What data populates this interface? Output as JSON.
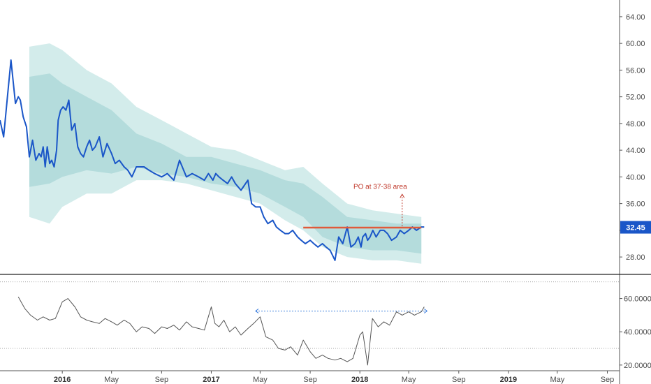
{
  "colors": {
    "price_line": "#1a56c8",
    "band_outer": "#d3eceb",
    "band_inner": "#b4dcdc",
    "target_line": "#e05a3a",
    "annotation": "#c0392b",
    "oscillator_line": "#555555",
    "oscillator_guide": "#3b7ddd",
    "axis_text": "#4a4a4a",
    "badge_bg": "#1a56c8",
    "panel_divider": "#222222"
  },
  "chart_data": [
    {
      "type": "line",
      "panel": "price",
      "ylim": [
        25.5,
        66.5
      ],
      "yticks": [
        28,
        32,
        36,
        40,
        44,
        48,
        52,
        56,
        60,
        64
      ],
      "ytick_labels": [
        "28.00",
        "32.00",
        "36.00",
        "40.00",
        "44.00",
        "48.00",
        "52.00",
        "56.00",
        "60.00",
        "64.00"
      ],
      "xlim": [
        "2015-08-01",
        "2019-10-01"
      ],
      "last_value_label": "32.45",
      "annotation_text": "PO at 37-38 area",
      "horizontal_level": {
        "value": 32.4,
        "x_start": "2017-08-15",
        "x_end": "2018-06-01"
      },
      "annotation_arrow": {
        "x": "2018-04-15",
        "y_from": 32.6,
        "y_to": 37.4
      },
      "annotation_pos": {
        "x": "2018-02-20",
        "y": 38.2
      },
      "series": [
        {
          "kind": "line",
          "x": [
            "2015-08-01",
            "2015-08-10",
            "2015-08-20",
            "2015-08-28",
            "2015-09-08",
            "2015-09-15",
            "2015-09-20",
            "2015-09-27",
            "2015-10-05",
            "2015-10-12",
            "2015-10-20",
            "2015-10-28",
            "2015-11-05",
            "2015-11-10",
            "2015-11-15",
            "2015-11-20",
            "2015-11-25",
            "2015-12-01",
            "2015-12-06",
            "2015-12-12",
            "2015-12-18",
            "2015-12-22",
            "2015-12-28",
            "2016-01-03",
            "2016-01-10",
            "2016-01-17",
            "2016-01-24",
            "2016-02-01",
            "2016-02-08",
            "2016-02-15",
            "2016-02-22",
            "2016-03-01",
            "2016-03-08",
            "2016-03-15",
            "2016-03-22",
            "2016-04-01",
            "2016-04-10",
            "2016-04-20",
            "2016-05-01",
            "2016-05-10",
            "2016-05-20",
            "2016-06-01",
            "2016-06-10",
            "2016-06-20",
            "2016-07-01",
            "2016-07-10",
            "2016-07-20",
            "2016-08-01",
            "2016-08-15",
            "2016-09-01",
            "2016-09-15",
            "2016-10-01",
            "2016-10-15",
            "2016-11-01",
            "2016-11-15",
            "2016-12-01",
            "2016-12-15",
            "2016-12-25",
            "2017-01-05",
            "2017-01-12",
            "2017-01-20",
            "2017-01-30",
            "2017-02-10",
            "2017-02-20",
            "2017-03-01",
            "2017-03-15",
            "2017-04-01",
            "2017-04-10",
            "2017-04-20",
            "2017-05-01",
            "2017-05-10",
            "2017-05-20",
            "2017-06-01",
            "2017-06-10",
            "2017-06-20",
            "2017-07-01",
            "2017-07-10",
            "2017-07-20",
            "2017-08-01",
            "2017-08-10",
            "2017-08-20",
            "2017-09-01",
            "2017-09-10",
            "2017-09-20",
            "2017-10-01",
            "2017-10-10",
            "2017-10-20",
            "2017-11-01",
            "2017-11-10",
            "2017-11-20",
            "2017-12-01",
            "2017-12-10",
            "2017-12-20",
            "2017-12-28",
            "2018-01-04",
            "2018-01-08",
            "2018-01-15",
            "2018-01-20",
            "2018-01-26",
            "2018-02-02",
            "2018-02-10",
            "2018-02-20",
            "2018-03-01",
            "2018-03-10",
            "2018-03-20",
            "2018-04-01",
            "2018-04-10",
            "2018-04-20",
            "2018-05-01",
            "2018-05-10",
            "2018-05-20",
            "2018-06-01",
            "2018-06-08"
          ],
          "y": [
            48.5,
            46.0,
            52.5,
            57.5,
            51.0,
            52.0,
            51.5,
            49.0,
            47.5,
            43.0,
            45.5,
            42.5,
            43.5,
            43.0,
            44.5,
            41.5,
            44.5,
            42.0,
            42.5,
            41.5,
            44.0,
            48.5,
            50.0,
            50.5,
            50.0,
            51.5,
            47.0,
            48.0,
            44.5,
            43.5,
            43.0,
            44.5,
            45.5,
            44.0,
            44.5,
            46.0,
            43.0,
            45.0,
            43.5,
            42.0,
            42.5,
            41.5,
            41.0,
            40.0,
            41.5,
            41.5,
            41.5,
            41.0,
            40.5,
            40.0,
            40.5,
            39.5,
            42.5,
            40.0,
            40.5,
            40.0,
            39.5,
            40.5,
            39.5,
            40.5,
            40.0,
            39.5,
            39.0,
            40.0,
            39.0,
            38.0,
            39.5,
            36.0,
            35.5,
            35.5,
            34.0,
            33.0,
            33.5,
            32.5,
            32.0,
            31.5,
            31.5,
            32.0,
            31.0,
            30.5,
            30.0,
            30.5,
            30.0,
            29.5,
            30.0,
            29.5,
            29.0,
            27.5,
            31.0,
            30.0,
            32.5,
            29.5,
            30.0,
            31.0,
            29.5,
            31.0,
            31.5,
            30.5,
            31.0,
            32.0,
            31.0,
            32.0,
            32.0,
            31.5,
            30.5,
            31.0,
            32.0,
            31.5,
            32.0,
            32.5,
            32.0,
            32.5,
            32.5
          ]
        },
        {
          "kind": "band_outer",
          "x": [
            "2015-10-12",
            "2015-12-01",
            "2016-01-01",
            "2016-03-01",
            "2016-05-01",
            "2016-07-01",
            "2016-09-01",
            "2016-11-01",
            "2017-01-01",
            "2017-03-01",
            "2017-05-01",
            "2017-07-01",
            "2017-08-15",
            "2017-10-01",
            "2017-12-01",
            "2018-02-01",
            "2018-04-01",
            "2018-06-01"
          ],
          "upper": [
            59.5,
            60.0,
            59.0,
            56.0,
            54.0,
            50.5,
            48.5,
            46.5,
            44.5,
            44.0,
            42.5,
            41.0,
            41.5,
            39.0,
            36.0,
            35.0,
            34.5,
            34.0
          ],
          "lower": [
            34.0,
            33.0,
            35.5,
            37.5,
            37.5,
            39.5,
            39.5,
            39.0,
            38.0,
            37.0,
            36.0,
            33.5,
            32.0,
            29.5,
            28.0,
            27.5,
            27.5,
            27.0
          ]
        },
        {
          "kind": "band_inner",
          "x": [
            "2015-10-12",
            "2015-12-01",
            "2016-01-01",
            "2016-03-01",
            "2016-05-01",
            "2016-07-01",
            "2016-09-01",
            "2016-11-01",
            "2017-01-01",
            "2017-03-01",
            "2017-05-01",
            "2017-07-01",
            "2017-08-15",
            "2017-10-01",
            "2017-12-01",
            "2018-02-01",
            "2018-04-01",
            "2018-06-01"
          ],
          "upper": [
            55.0,
            55.5,
            54.0,
            52.0,
            50.0,
            46.5,
            45.0,
            43.0,
            43.0,
            42.0,
            41.0,
            39.5,
            39.0,
            37.0,
            34.0,
            33.5,
            33.0,
            33.0
          ],
          "lower": [
            38.5,
            39.0,
            40.0,
            41.0,
            40.5,
            41.5,
            40.5,
            40.0,
            39.0,
            38.5,
            37.5,
            35.5,
            34.0,
            31.0,
            29.5,
            29.0,
            29.0,
            28.5
          ]
        }
      ],
      "x_tick_labels": [
        "2016",
        "May",
        "Sep",
        "2017",
        "May",
        "Sep",
        "2018",
        "May",
        "Sep",
        "2019",
        "May",
        "Sep"
      ],
      "x_ticks": [
        "2016-01-01",
        "2016-05-01",
        "2016-09-01",
        "2017-01-01",
        "2017-05-01",
        "2017-09-01",
        "2018-01-01",
        "2018-05-01",
        "2018-09-01",
        "2019-01-01",
        "2019-05-01",
        "2019-09-01"
      ]
    },
    {
      "type": "line",
      "panel": "oscillator",
      "ylim": [
        17,
        72
      ],
      "yticks": [
        20,
        40,
        60
      ],
      "ytick_labels": [
        "20.0000",
        "40.0000",
        "60.0000"
      ],
      "reference_lines": [
        70,
        30
      ],
      "guide_line": {
        "value": 52.5,
        "x_start": "2017-04-20",
        "x_end": "2018-06-15"
      },
      "series": [
        {
          "kind": "line",
          "x": [
            "2015-09-15",
            "2015-10-01",
            "2015-10-15",
            "2015-11-01",
            "2015-11-15",
            "2015-12-01",
            "2015-12-15",
            "2016-01-01",
            "2016-01-15",
            "2016-02-01",
            "2016-02-15",
            "2016-03-01",
            "2016-03-15",
            "2016-04-01",
            "2016-04-15",
            "2016-05-01",
            "2016-05-15",
            "2016-06-01",
            "2016-06-15",
            "2016-07-01",
            "2016-07-15",
            "2016-08-01",
            "2016-08-15",
            "2016-09-01",
            "2016-09-15",
            "2016-10-01",
            "2016-10-15",
            "2016-11-01",
            "2016-11-15",
            "2016-12-01",
            "2016-12-15",
            "2017-01-01",
            "2017-01-10",
            "2017-01-20",
            "2017-02-01",
            "2017-02-15",
            "2017-03-01",
            "2017-03-15",
            "2017-04-01",
            "2017-04-15",
            "2017-05-01",
            "2017-05-15",
            "2017-06-01",
            "2017-06-15",
            "2017-07-01",
            "2017-07-15",
            "2017-08-01",
            "2017-08-15",
            "2017-09-01",
            "2017-09-15",
            "2017-10-01",
            "2017-10-15",
            "2017-11-01",
            "2017-11-15",
            "2017-12-01",
            "2017-12-15",
            "2018-01-01",
            "2018-01-08",
            "2018-01-20",
            "2018-02-01",
            "2018-02-15",
            "2018-03-01",
            "2018-03-15",
            "2018-04-01",
            "2018-04-15",
            "2018-05-01",
            "2018-05-15",
            "2018-06-01",
            "2018-06-08"
          ],
          "y": [
            61,
            54,
            50,
            47,
            49,
            47,
            48,
            58,
            60,
            55,
            49,
            47,
            46,
            45,
            48,
            46,
            44,
            47,
            45,
            40,
            43,
            42,
            39,
            43,
            42,
            44,
            41,
            46,
            43,
            42,
            41,
            55,
            45,
            43,
            47,
            40,
            43,
            38,
            42,
            45,
            49,
            37,
            35,
            30,
            29,
            31,
            26,
            35,
            28,
            24,
            26,
            24,
            23,
            24,
            22,
            24,
            38,
            40,
            20,
            48,
            43,
            46,
            44,
            52,
            50,
            52,
            50,
            52,
            55
          ]
        }
      ]
    }
  ]
}
